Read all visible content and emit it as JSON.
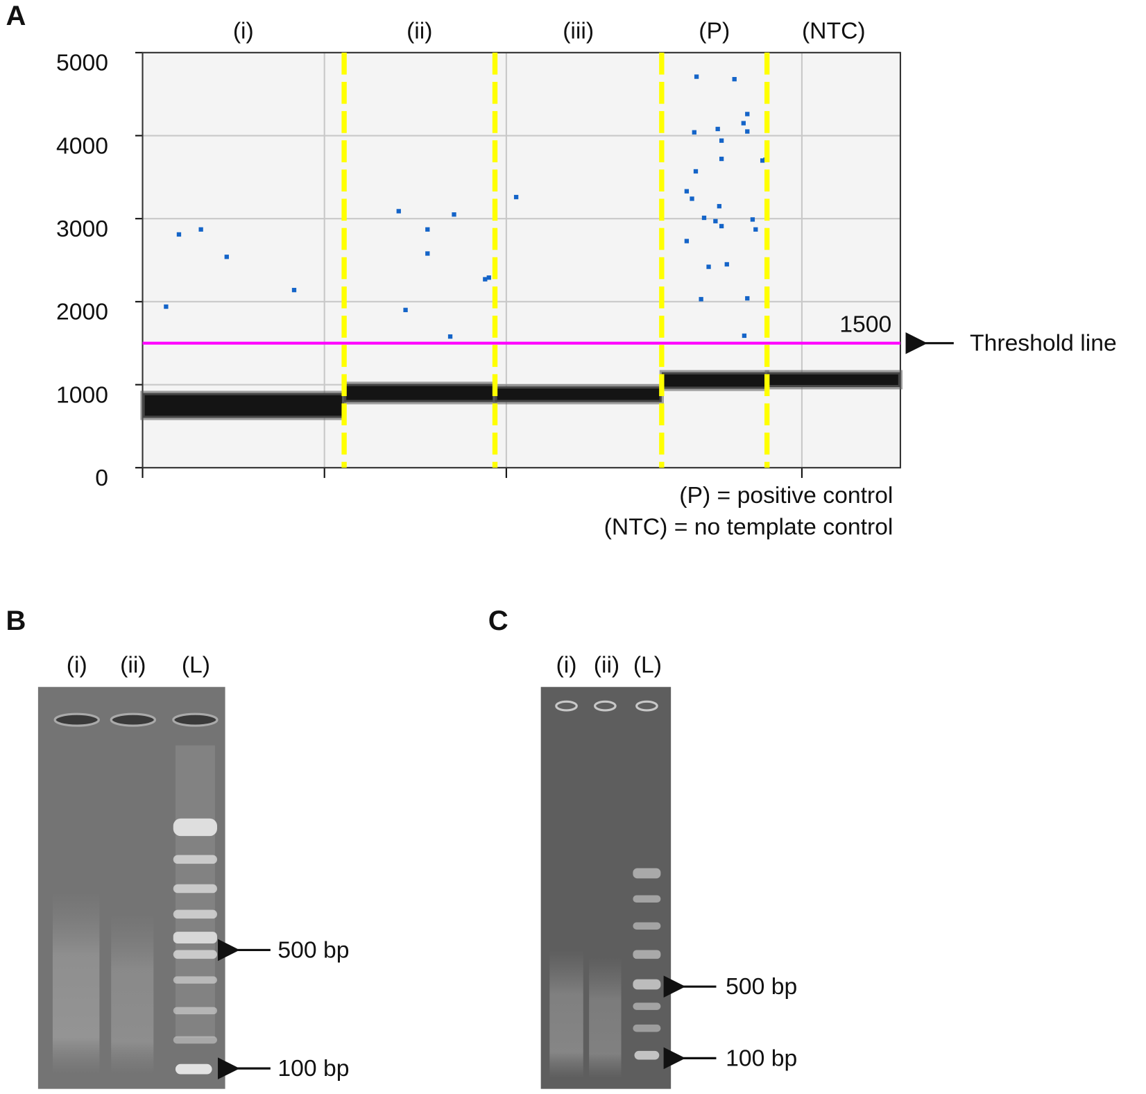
{
  "chart_data": {
    "type": "scatter",
    "panel_label": "A",
    "categories": [
      "(i)",
      "(ii)",
      "(iii)",
      "(P)",
      "(NTC)"
    ],
    "well_boundaries": [
      26.6,
      46.5,
      68.5,
      82.4
    ],
    "boundary_color": "#ffff00",
    "xlim": [
      0,
      100
    ],
    "xticks": [
      0,
      24,
      48,
      87
    ],
    "ylim": [
      0,
      5000
    ],
    "yticks": [
      0,
      1000,
      2000,
      3000,
      4000,
      5000
    ],
    "grid": true,
    "series": [
      {
        "color": "#1464c8",
        "x": [
          3.1,
          4.8,
          7.7,
          11.1,
          20.0,
          33.8,
          34.7,
          37.6,
          37.6,
          41.1,
          40.6,
          45.2,
          45.7,
          49.3,
          73.1,
          78.1,
          72.8,
          75.9,
          79.8,
          79.3,
          79.8,
          76.4,
          76.4,
          73.0,
          81.8,
          82.2,
          71.8,
          72.5,
          76.1,
          74.1,
          75.6,
          76.4,
          80.5,
          80.9,
          71.8,
          74.7,
          77.1,
          73.7,
          79.8,
          79.4
        ],
        "values": [
          1940,
          2810,
          2870,
          2540,
          2140,
          3090,
          1900,
          2870,
          2580,
          3050,
          1580,
          2270,
          2290,
          3260,
          4710,
          4680,
          4040,
          4080,
          4260,
          4150,
          4050,
          3940,
          3720,
          3570,
          3700,
          3710,
          3330,
          3240,
          3150,
          3010,
          2970,
          2910,
          2990,
          2870,
          2730,
          2420,
          2450,
          2030,
          2040,
          1590
        ]
      }
    ],
    "negative_band": {
      "color": "#141414",
      "lower": [
        600,
        790,
        790,
        950,
        970
      ],
      "upper": [
        900,
        1010,
        980,
        1150,
        1150
      ]
    },
    "threshold": 1500,
    "threshold_color": "#ff00ff",
    "threshold_annotation": "Threshold line",
    "notes": [
      "(P) = positive control",
      "(NTC) = no template control"
    ]
  },
  "gels": [
    {
      "panel_label": "B",
      "lanes": [
        "(i)",
        "(ii)",
        "(L)"
      ],
      "markers": [
        "500 bp",
        "100 bp"
      ]
    },
    {
      "panel_label": "C",
      "lanes": [
        "(i)",
        "(ii)",
        "(L)"
      ],
      "markers": [
        "500 bp",
        "100 bp"
      ]
    }
  ]
}
